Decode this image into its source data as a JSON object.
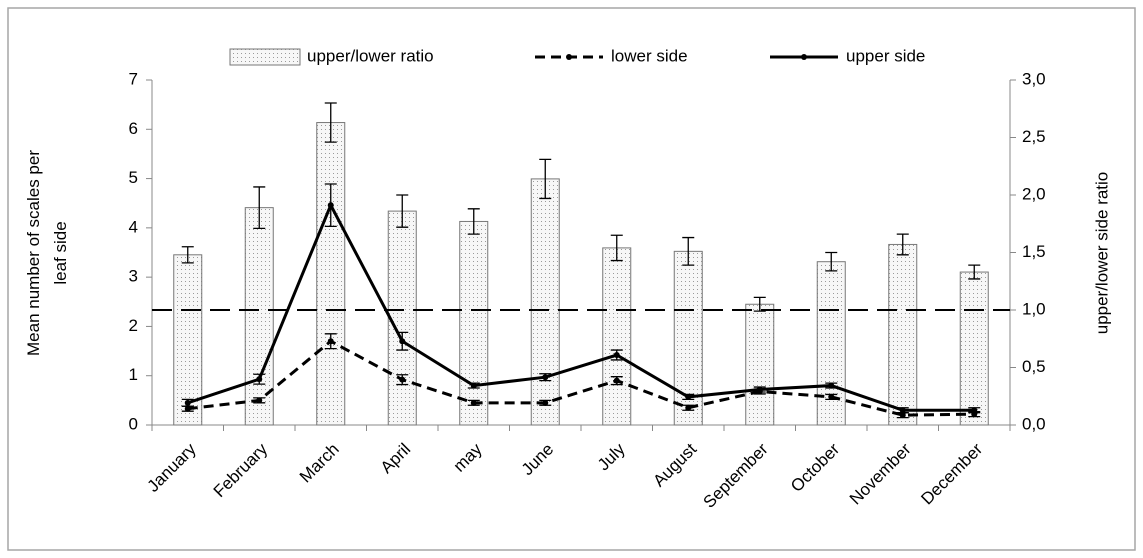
{
  "chart_data": {
    "type": "bar-line",
    "categories": [
      "January",
      "February",
      "March",
      "April",
      "may",
      "June",
      "July",
      "August",
      "September",
      "October",
      "November",
      "December"
    ],
    "series": [
      {
        "name": "upper/lower ratio",
        "kind": "bar",
        "axis": "y2",
        "color": "#f4f4f4",
        "values": [
          1.48,
          1.89,
          2.63,
          1.86,
          1.77,
          2.14,
          1.54,
          1.51,
          1.05,
          1.42,
          1.57,
          1.33
        ],
        "errors": [
          0.07,
          0.18,
          0.17,
          0.14,
          0.11,
          0.17,
          0.11,
          0.12,
          0.06,
          0.08,
          0.09,
          0.06
        ]
      },
      {
        "name": "lower side",
        "kind": "line",
        "dash": true,
        "color": "#000000",
        "values": [
          0.33,
          0.5,
          1.7,
          0.92,
          0.45,
          0.45,
          0.9,
          0.35,
          0.68,
          0.57,
          0.2,
          0.22
        ],
        "errors": [
          0.05,
          0.05,
          0.15,
          0.1,
          0.05,
          0.05,
          0.08,
          0.05,
          0.05,
          0.05,
          0.05,
          0.05
        ]
      },
      {
        "name": "upper side",
        "kind": "line",
        "dash": false,
        "color": "#000000",
        "values": [
          0.45,
          0.93,
          4.46,
          1.7,
          0.8,
          0.97,
          1.42,
          0.57,
          0.72,
          0.8,
          0.3,
          0.3
        ],
        "errors": [
          0.07,
          0.1,
          0.43,
          0.18,
          0.05,
          0.07,
          0.1,
          0.05,
          0.05,
          0.05,
          0.05,
          0.05
        ]
      }
    ],
    "ylabel": [
      "Mean number of scales per",
      "leaf side"
    ],
    "y2label": "upper/lower side ratio",
    "ylim": [
      0,
      7
    ],
    "yticks": [
      0,
      1,
      2,
      3,
      4,
      5,
      6,
      7
    ],
    "y2lim": [
      0,
      3
    ],
    "y2ticks": [
      {
        "value": 0,
        "label": "0,0"
      },
      {
        "value": 0.5,
        "label": "0,5"
      },
      {
        "value": 1,
        "label": "1,0"
      },
      {
        "value": 1.5,
        "label": "1,5"
      },
      {
        "value": 2,
        "label": "2,0"
      },
      {
        "value": 2.5,
        "label": "2,5"
      },
      {
        "value": 3,
        "label": "3,0"
      }
    ],
    "reference_line": {
      "value": 1,
      "axis": "y2"
    },
    "legend": "top"
  }
}
